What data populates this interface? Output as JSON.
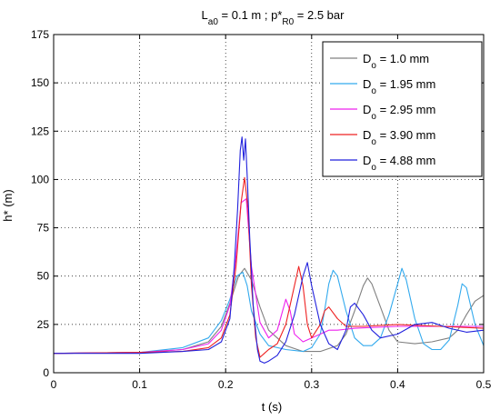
{
  "chart_data": {
    "type": "line",
    "title": {
      "l_main": "L",
      "l_sub": "a0",
      "mid": " = 0.1 m ;  p*",
      "p_sub": "R0",
      "tail": " = 2.5 bar"
    },
    "xlabel": "t  (s)",
    "ylabel": "h*  (m)",
    "xlim": [
      0,
      0.5
    ],
    "ylim": [
      0,
      175
    ],
    "xticks": [
      0,
      0.1,
      0.2,
      0.3,
      0.4,
      0.5
    ],
    "xtick_labels": [
      "0",
      "0.1",
      "0.2",
      "0.3",
      "0.4",
      "0.5"
    ],
    "yticks": [
      0,
      25,
      50,
      75,
      100,
      125,
      150,
      175
    ],
    "ytick_labels": [
      "0",
      "25",
      "50",
      "75",
      "100",
      "125",
      "150",
      "175"
    ],
    "grid": true,
    "legend_position": "top-right",
    "series": [
      {
        "legend_main": "D",
        "legend_sub": "o",
        "legend_rest": " = 1.0 mm",
        "color": "#808080",
        "x": [
          0,
          0.1,
          0.15,
          0.18,
          0.195,
          0.205,
          0.215,
          0.222,
          0.23,
          0.24,
          0.25,
          0.27,
          0.29,
          0.31,
          0.33,
          0.34,
          0.35,
          0.36,
          0.365,
          0.37,
          0.38,
          0.39,
          0.4,
          0.42,
          0.44,
          0.46,
          0.47,
          0.48,
          0.49,
          0.5
        ],
        "y": [
          10,
          10.5,
          12,
          16,
          24,
          36,
          50,
          54,
          48,
          34,
          22,
          14,
          11,
          11,
          14,
          20,
          32,
          45,
          49,
          46,
          34,
          22,
          16,
          15,
          16,
          18,
          22,
          30,
          37,
          40
        ]
      },
      {
        "legend_main": "D",
        "legend_sub": "o",
        "legend_rest": " = 1.95 mm",
        "color": "#33aaee",
        "x": [
          0,
          0.1,
          0.15,
          0.18,
          0.195,
          0.205,
          0.213,
          0.22,
          0.225,
          0.23,
          0.24,
          0.25,
          0.27,
          0.29,
          0.3,
          0.31,
          0.315,
          0.32,
          0.325,
          0.33,
          0.34,
          0.35,
          0.36,
          0.37,
          0.38,
          0.39,
          0.4,
          0.405,
          0.41,
          0.42,
          0.43,
          0.44,
          0.45,
          0.46,
          0.47,
          0.475,
          0.48,
          0.49,
          0.5
        ],
        "y": [
          10,
          10.5,
          13,
          18,
          27,
          38,
          50,
          52,
          45,
          32,
          20,
          14,
          12,
          11,
          13,
          20,
          32,
          46,
          53,
          50,
          32,
          18,
          14,
          14,
          18,
          30,
          46,
          54,
          48,
          28,
          15,
          12,
          12,
          17,
          35,
          46,
          44,
          25,
          14
        ]
      },
      {
        "legend_main": "D",
        "legend_sub": "o",
        "legend_rest": " = 2.95 mm",
        "color": "#ee22ee",
        "x": [
          0,
          0.1,
          0.15,
          0.18,
          0.195,
          0.205,
          0.212,
          0.218,
          0.224,
          0.23,
          0.24,
          0.25,
          0.26,
          0.265,
          0.27,
          0.275,
          0.28,
          0.29,
          0.3,
          0.31,
          0.32,
          0.33,
          0.35,
          0.4,
          0.45,
          0.5
        ],
        "y": [
          10,
          10.5,
          12,
          15,
          22,
          35,
          60,
          88,
          90,
          55,
          26,
          18,
          22,
          30,
          38,
          32,
          20,
          16,
          18,
          20,
          22,
          22,
          23,
          24,
          24,
          24
        ]
      },
      {
        "legend_main": "D",
        "legend_sub": "o",
        "legend_rest": " = 3.90 mm",
        "color": "#ee2222",
        "x": [
          0,
          0.1,
          0.15,
          0.18,
          0.195,
          0.205,
          0.212,
          0.218,
          0.222,
          0.226,
          0.23,
          0.235,
          0.24,
          0.245,
          0.25,
          0.26,
          0.27,
          0.28,
          0.285,
          0.29,
          0.295,
          0.3,
          0.31,
          0.315,
          0.32,
          0.33,
          0.34,
          0.36,
          0.4,
          0.45,
          0.5
        ],
        "y": [
          10,
          10.5,
          11,
          13,
          18,
          30,
          55,
          88,
          101,
          85,
          45,
          18,
          8,
          10,
          12,
          15,
          25,
          45,
          55,
          45,
          25,
          18,
          25,
          32,
          34,
          28,
          24,
          24,
          25,
          24,
          23
        ]
      },
      {
        "legend_main": "D",
        "legend_sub": "o",
        "legend_rest": " = 4.88 mm",
        "color": "#2222dd",
        "x": [
          0,
          0.1,
          0.15,
          0.18,
          0.195,
          0.205,
          0.21,
          0.214,
          0.217,
          0.219,
          0.221,
          0.223,
          0.225,
          0.228,
          0.232,
          0.237,
          0.24,
          0.245,
          0.25,
          0.26,
          0.27,
          0.28,
          0.29,
          0.295,
          0.3,
          0.31,
          0.32,
          0.33,
          0.34,
          0.345,
          0.35,
          0.36,
          0.37,
          0.38,
          0.4,
          0.42,
          0.44,
          0.46,
          0.48,
          0.5
        ],
        "y": [
          10,
          10,
          11,
          12,
          16,
          28,
          55,
          85,
          115,
          122,
          110,
          121,
          102,
          70,
          35,
          12,
          6,
          5,
          6,
          9,
          16,
          30,
          50,
          57,
          45,
          25,
          15,
          12,
          22,
          34,
          36,
          30,
          22,
          18,
          20,
          25,
          26,
          23,
          21,
          22
        ]
      }
    ]
  }
}
